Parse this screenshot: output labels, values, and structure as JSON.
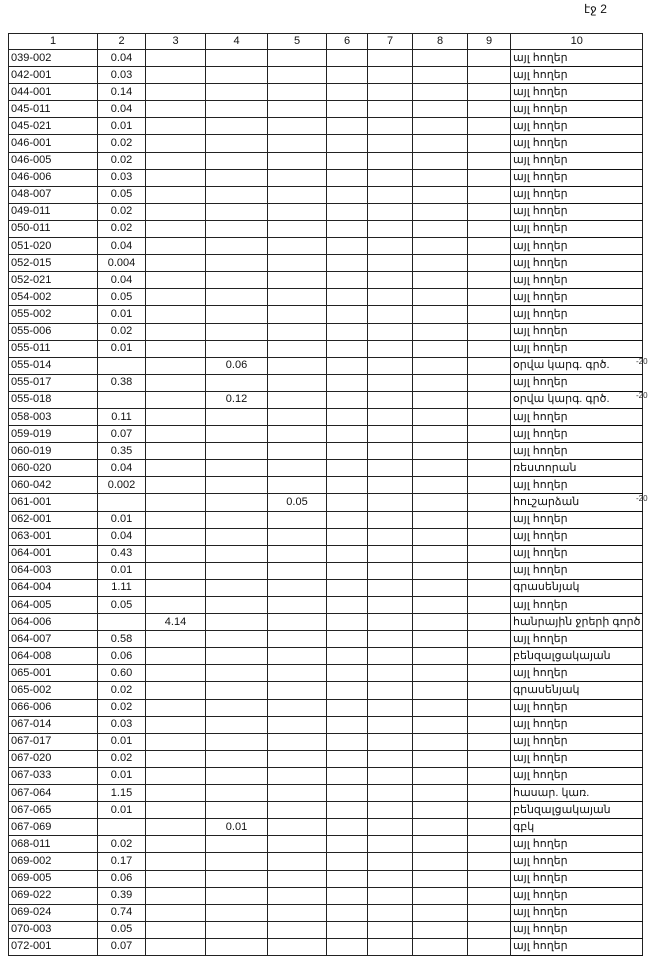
{
  "page_mark": "էջ 2",
  "columns": [
    "1",
    "2",
    "3",
    "4",
    "5",
    "6",
    "7",
    "8",
    "9",
    "10"
  ],
  "rows": [
    [
      "039-002",
      "0.04",
      "",
      "",
      "",
      "",
      "",
      "",
      "",
      "այլ հողեր"
    ],
    [
      "042-001",
      "0.03",
      "",
      "",
      "",
      "",
      "",
      "",
      "",
      "այլ հողեր"
    ],
    [
      "044-001",
      "0.14",
      "",
      "",
      "",
      "",
      "",
      "",
      "",
      "այլ հողեր"
    ],
    [
      "045-011",
      "0.04",
      "",
      "",
      "",
      "",
      "",
      "",
      "",
      "այլ հողեր"
    ],
    [
      "045-021",
      "0.01",
      "",
      "",
      "",
      "",
      "",
      "",
      "",
      "այլ հողեր"
    ],
    [
      "046-001",
      "0.02",
      "",
      "",
      "",
      "",
      "",
      "",
      "",
      "այլ հողեր"
    ],
    [
      "046-005",
      "0.02",
      "",
      "",
      "",
      "",
      "",
      "",
      "",
      "այլ հողեր"
    ],
    [
      "046-006",
      "0.03",
      "",
      "",
      "",
      "",
      "",
      "",
      "",
      "այլ հողեր"
    ],
    [
      "048-007",
      "0.05",
      "",
      "",
      "",
      "",
      "",
      "",
      "",
      "այլ հողեր"
    ],
    [
      "049-011",
      "0.02",
      "",
      "",
      "",
      "",
      "",
      "",
      "",
      "այլ հողեր"
    ],
    [
      "050-011",
      "0.02",
      "",
      "",
      "",
      "",
      "",
      "",
      "",
      "այլ հողեր"
    ],
    [
      "051-020",
      "0.04",
      "",
      "",
      "",
      "",
      "",
      "",
      "",
      "այլ հողեր"
    ],
    [
      "052-015",
      "0.004",
      "",
      "",
      "",
      "",
      "",
      "",
      "",
      "այլ հողեր"
    ],
    [
      "052-021",
      "0.04",
      "",
      "",
      "",
      "",
      "",
      "",
      "",
      "այլ հողեր"
    ],
    [
      "054-002",
      "0.05",
      "",
      "",
      "",
      "",
      "",
      "",
      "",
      "այլ հողեր"
    ],
    [
      "055-002",
      "0.01",
      "",
      "",
      "",
      "",
      "",
      "",
      "",
      "այլ հողեր"
    ],
    [
      "055-006",
      "0.02",
      "",
      "",
      "",
      "",
      "",
      "",
      "",
      "այլ հողեր"
    ],
    [
      "055-011",
      "0.01",
      "",
      "",
      "",
      "",
      "",
      "",
      "",
      "այլ հողեր"
    ],
    [
      "055-014",
      "",
      "",
      "0.06",
      "",
      "",
      "",
      "",
      "",
      "օրվա կարգ. գրծ."
    ],
    [
      "055-017",
      "0.38",
      "",
      "",
      "",
      "",
      "",
      "",
      "",
      "այլ հողեր"
    ],
    [
      "055-018",
      "",
      "",
      "0.12",
      "",
      "",
      "",
      "",
      "",
      "օրվա կարգ. գրծ."
    ],
    [
      "058-003",
      "0.11",
      "",
      "",
      "",
      "",
      "",
      "",
      "",
      "այլ հողեր"
    ],
    [
      "059-019",
      "0.07",
      "",
      "",
      "",
      "",
      "",
      "",
      "",
      "այլ հողեր"
    ],
    [
      "060-019",
      "0.35",
      "",
      "",
      "",
      "",
      "",
      "",
      "",
      "այլ հողեր"
    ],
    [
      "060-020",
      "0.04",
      "",
      "",
      "",
      "",
      "",
      "",
      "",
      "ռեստորան"
    ],
    [
      "060-042",
      "0.002",
      "",
      "",
      "",
      "",
      "",
      "",
      "",
      "այլ հողեր"
    ],
    [
      "061-001",
      "",
      "",
      "",
      "0.05",
      "",
      "",
      "",
      "",
      "հուշարձան"
    ],
    [
      "062-001",
      "0.01",
      "",
      "",
      "",
      "",
      "",
      "",
      "",
      "այլ հողեր"
    ],
    [
      "063-001",
      "0.04",
      "",
      "",
      "",
      "",
      "",
      "",
      "",
      "այլ հողեր"
    ],
    [
      "064-001",
      "0.43",
      "",
      "",
      "",
      "",
      "",
      "",
      "",
      "այլ հողեր"
    ],
    [
      "064-003",
      "0.01",
      "",
      "",
      "",
      "",
      "",
      "",
      "",
      "այլ հողեր"
    ],
    [
      "064-004",
      "1.11",
      "",
      "",
      "",
      "",
      "",
      "",
      "",
      "գրասենյակ"
    ],
    [
      "064-005",
      "0.05",
      "",
      "",
      "",
      "",
      "",
      "",
      "",
      "այլ հողեր"
    ],
    [
      "064-006",
      "",
      "4.14",
      "",
      "",
      "",
      "",
      "",
      "",
      "հանրային ջրերի գործ"
    ],
    [
      "064-007",
      "0.58",
      "",
      "",
      "",
      "",
      "",
      "",
      "",
      "այլ հողեր"
    ],
    [
      "064-008",
      "0.06",
      "",
      "",
      "",
      "",
      "",
      "",
      "",
      "բենզալցակայան"
    ],
    [
      "065-001",
      "0.60",
      "",
      "",
      "",
      "",
      "",
      "",
      "",
      "այլ հողեր"
    ],
    [
      "065-002",
      "0.02",
      "",
      "",
      "",
      "",
      "",
      "",
      "",
      "գրասենյակ"
    ],
    [
      "066-006",
      "0.02",
      "",
      "",
      "",
      "",
      "",
      "",
      "",
      "այլ հողեր"
    ],
    [
      "067-014",
      "0.03",
      "",
      "",
      "",
      "",
      "",
      "",
      "",
      "այլ հողեր"
    ],
    [
      "067-017",
      "0.01",
      "",
      "",
      "",
      "",
      "",
      "",
      "",
      "այլ հողեր"
    ],
    [
      "067-020",
      "0.02",
      "",
      "",
      "",
      "",
      "",
      "",
      "",
      "այլ հողեր"
    ],
    [
      "067-033",
      "0.01",
      "",
      "",
      "",
      "",
      "",
      "",
      "",
      "այլ հողեր"
    ],
    [
      "067-064",
      "1.15",
      "",
      "",
      "",
      "",
      "",
      "",
      "",
      "հասար. կառ."
    ],
    [
      "067-065",
      "0.01",
      "",
      "",
      "",
      "",
      "",
      "",
      "",
      "բենզալցակայան"
    ],
    [
      "067-069",
      "",
      "",
      "0.01",
      "",
      "",
      "",
      "",
      "",
      "գբկ"
    ],
    [
      "068-011",
      "0.02",
      "",
      "",
      "",
      "",
      "",
      "",
      "",
      "այլ հողեր"
    ],
    [
      "069-002",
      "0.17",
      "",
      "",
      "",
      "",
      "",
      "",
      "",
      "այլ հողեր"
    ],
    [
      "069-005",
      "0.06",
      "",
      "",
      "",
      "",
      "",
      "",
      "",
      "այլ հողեր"
    ],
    [
      "069-022",
      "0.39",
      "",
      "",
      "",
      "",
      "",
      "",
      "",
      "այլ հողեր"
    ],
    [
      "069-024",
      "0.74",
      "",
      "",
      "",
      "",
      "",
      "",
      "",
      "այլ հողեր"
    ],
    [
      "070-003",
      "0.05",
      "",
      "",
      "",
      "",
      "",
      "",
      "",
      "այլ հողեր"
    ],
    [
      "072-001",
      "0.07",
      "",
      "",
      "",
      "",
      "",
      "",
      "",
      "այլ հողեր"
    ]
  ],
  "margin_notes": [
    {
      "row": 18,
      "text": "-20"
    },
    {
      "row": 20,
      "text": "-20"
    },
    {
      "row": 26,
      "text": "-20"
    }
  ]
}
